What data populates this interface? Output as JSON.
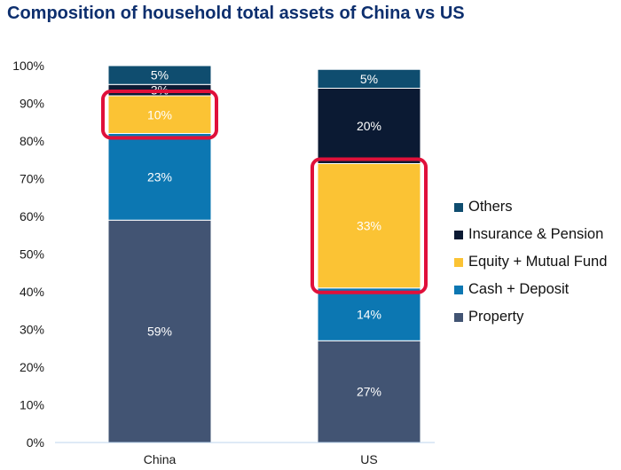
{
  "chart_data": {
    "type": "bar",
    "stacked": true,
    "title": "Composition of household total assets of China vs US",
    "xlabel": "",
    "ylabel": "",
    "ylim": [
      0,
      100
    ],
    "yticks": [
      "0%",
      "10%",
      "20%",
      "30%",
      "40%",
      "50%",
      "60%",
      "70%",
      "80%",
      "90%",
      "100%"
    ],
    "categories": [
      "China",
      "US"
    ],
    "series": [
      {
        "name": "Property",
        "color": "#425473",
        "values": [
          59,
          27
        ],
        "labels": [
          "59%",
          "27%"
        ]
      },
      {
        "name": "Cash + Deposit",
        "color": "#0c77b2",
        "values": [
          23,
          14
        ],
        "labels": [
          "23%",
          "14%"
        ]
      },
      {
        "name": "Equity + Mutual Fund",
        "color": "#fbc334",
        "values": [
          10,
          33
        ],
        "labels": [
          "10%",
          "33%"
        ]
      },
      {
        "name": "Insurance & Pension",
        "color": "#0b1a33",
        "values": [
          3,
          20
        ],
        "labels": [
          "3%",
          "20%"
        ]
      },
      {
        "name": "Others",
        "color": "#0f4d6f",
        "values": [
          5,
          5
        ],
        "labels": [
          "5%",
          "5%"
        ]
      }
    ],
    "legend_order": [
      "Others",
      "Insurance & Pension",
      "Equity + Mutual Fund",
      "Cash + Deposit",
      "Property"
    ],
    "legend_position": "right",
    "grid": false,
    "highlights": [
      {
        "category": "China",
        "series": "Equity + Mutual Fund",
        "color": "#e0103a"
      },
      {
        "category": "US",
        "series": "Equity + Mutual Fund",
        "color": "#e0103a"
      }
    ]
  }
}
